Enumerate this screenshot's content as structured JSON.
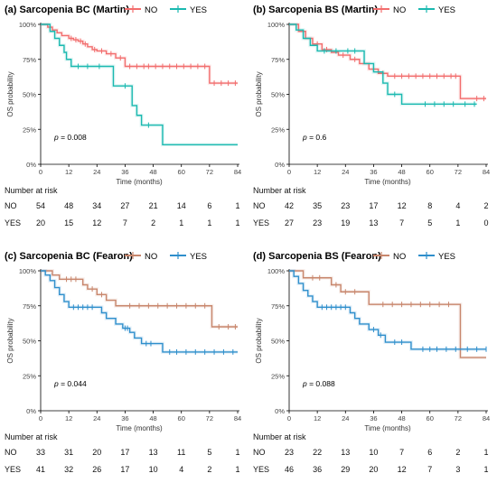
{
  "chart_data": [
    {
      "type": "line",
      "panel_title": "(a) Sarcopenia BC (Martin)",
      "xlabel": "Time (months)",
      "ylabel": "OS probability",
      "xlim": [
        0,
        84
      ],
      "ylim": [
        0,
        1
      ],
      "x_ticks": [
        "0",
        "12",
        "24",
        "36",
        "48",
        "60",
        "72",
        "84"
      ],
      "y_ticks": [
        "0%",
        "25%",
        "50%",
        "75%",
        "100%"
      ],
      "legend": [
        "NO",
        "YES"
      ],
      "pvalue": "0.008",
      "risk_title": "Number at risk",
      "risk_rows": [
        {
          "label": "NO",
          "values": [
            "54",
            "48",
            "34",
            "27",
            "21",
            "14",
            "6",
            "1"
          ]
        },
        {
          "label": "YES",
          "values": [
            "20",
            "15",
            "12",
            "7",
            "2",
            "1",
            "1",
            "1"
          ]
        }
      ],
      "series": [
        {
          "name": "NO",
          "color": "#f26d6d",
          "steps": [
            [
              0,
              1
            ],
            [
              3,
              0.98
            ],
            [
              5,
              0.96
            ],
            [
              7,
              0.94
            ],
            [
              9,
              0.92
            ],
            [
              12,
              0.9
            ],
            [
              14,
              0.89
            ],
            [
              16,
              0.88
            ],
            [
              18,
              0.86
            ],
            [
              20,
              0.84
            ],
            [
              22,
              0.82
            ],
            [
              24,
              0.81
            ],
            [
              28,
              0.79
            ],
            [
              32,
              0.76
            ],
            [
              36,
              0.7
            ],
            [
              72,
              0.58
            ],
            [
              84,
              0.58
            ]
          ],
          "censor": [
            13,
            15,
            17,
            19,
            23,
            26,
            30,
            34,
            38,
            41,
            44,
            46,
            49,
            52,
            55,
            58,
            61,
            64,
            67,
            70,
            74,
            77,
            80,
            83
          ]
        },
        {
          "name": "YES",
          "color": "#1ab9b0",
          "steps": [
            [
              0,
              1
            ],
            [
              4,
              0.95
            ],
            [
              6,
              0.9
            ],
            [
              8,
              0.85
            ],
            [
              10,
              0.8
            ],
            [
              11,
              0.75
            ],
            [
              13,
              0.7
            ],
            [
              31,
              0.56
            ],
            [
              39,
              0.42
            ],
            [
              41,
              0.35
            ],
            [
              43,
              0.28
            ],
            [
              52,
              0.14
            ],
            [
              84,
              0.14
            ]
          ],
          "censor": [
            16,
            20,
            25,
            36,
            46
          ]
        }
      ]
    },
    {
      "type": "line",
      "panel_title": "(b) Sarcopenia BS (Martin)",
      "xlabel": "Time (months)",
      "ylabel": "OS probability",
      "xlim": [
        0,
        84
      ],
      "ylim": [
        0,
        1
      ],
      "x_ticks": [
        "0",
        "12",
        "24",
        "36",
        "48",
        "60",
        "72",
        "84"
      ],
      "y_ticks": [
        "0%",
        "25%",
        "50%",
        "75%",
        "100%"
      ],
      "legend": [
        "NO",
        "YES"
      ],
      "pvalue": "0.6",
      "risk_title": "Number at risk",
      "risk_rows": [
        {
          "label": "NO",
          "values": [
            "42",
            "35",
            "23",
            "17",
            "12",
            "8",
            "4",
            "2"
          ]
        },
        {
          "label": "YES",
          "values": [
            "27",
            "23",
            "19",
            "13",
            "7",
            "5",
            "1",
            "0"
          ]
        }
      ],
      "series": [
        {
          "name": "NO",
          "color": "#f26d6d",
          "steps": [
            [
              0,
              1
            ],
            [
              4,
              0.95
            ],
            [
              7,
              0.9
            ],
            [
              10,
              0.86
            ],
            [
              14,
              0.82
            ],
            [
              18,
              0.8
            ],
            [
              21,
              0.78
            ],
            [
              26,
              0.75
            ],
            [
              30,
              0.72
            ],
            [
              34,
              0.68
            ],
            [
              38,
              0.65
            ],
            [
              42,
              0.63
            ],
            [
              73,
              0.47
            ],
            [
              84,
              0.47
            ]
          ],
          "censor": [
            12,
            16,
            23,
            28,
            36,
            40,
            45,
            48,
            51,
            54,
            57,
            60,
            63,
            66,
            69,
            71,
            80,
            83
          ]
        },
        {
          "name": "YES",
          "color": "#1ab9b0",
          "steps": [
            [
              0,
              1
            ],
            [
              3,
              0.96
            ],
            [
              6,
              0.9
            ],
            [
              9,
              0.85
            ],
            [
              12,
              0.81
            ],
            [
              32,
              0.72
            ],
            [
              36,
              0.66
            ],
            [
              40,
              0.58
            ],
            [
              42,
              0.5
            ],
            [
              48,
              0.43
            ],
            [
              80,
              0.43
            ]
          ],
          "censor": [
            15,
            20,
            25,
            28,
            45,
            58,
            62,
            66,
            70,
            75,
            79
          ]
        }
      ]
    },
    {
      "type": "line",
      "panel_title": "(c) Sarcopenia BC (Fearon)",
      "xlabel": "Time (months)",
      "ylabel": "OS probability",
      "xlim": [
        0,
        84
      ],
      "ylim": [
        0,
        1
      ],
      "x_ticks": [
        "0",
        "12",
        "24",
        "36",
        "48",
        "60",
        "72",
        "84"
      ],
      "y_ticks": [
        "0%",
        "25%",
        "50%",
        "75%",
        "100%"
      ],
      "legend": [
        "NO",
        "YES"
      ],
      "pvalue": "0.044",
      "risk_title": "Number at risk",
      "risk_rows": [
        {
          "label": "NO",
          "values": [
            "33",
            "31",
            "20",
            "17",
            "13",
            "11",
            "5",
            "1"
          ]
        },
        {
          "label": "YES",
          "values": [
            "41",
            "32",
            "26",
            "17",
            "10",
            "4",
            "2",
            "1"
          ]
        }
      ],
      "series": [
        {
          "name": "NO",
          "color": "#c8866c",
          "steps": [
            [
              0,
              1
            ],
            [
              5,
              0.97
            ],
            [
              8,
              0.94
            ],
            [
              18,
              0.9
            ],
            [
              20,
              0.87
            ],
            [
              24,
              0.83
            ],
            [
              28,
              0.79
            ],
            [
              32,
              0.75
            ],
            [
              73,
              0.6
            ],
            [
              84,
              0.6
            ]
          ],
          "censor": [
            11,
            13,
            15,
            22,
            26,
            38,
            42,
            46,
            50,
            54,
            58,
            62,
            66,
            70,
            76,
            80,
            83
          ]
        },
        {
          "name": "YES",
          "color": "#2f8fcc",
          "steps": [
            [
              0,
              1
            ],
            [
              2,
              0.97
            ],
            [
              4,
              0.93
            ],
            [
              6,
              0.88
            ],
            [
              8,
              0.83
            ],
            [
              10,
              0.78
            ],
            [
              12,
              0.74
            ],
            [
              26,
              0.7
            ],
            [
              28,
              0.66
            ],
            [
              32,
              0.62
            ],
            [
              35,
              0.59
            ],
            [
              38,
              0.56
            ],
            [
              40,
              0.52
            ],
            [
              43,
              0.48
            ],
            [
              52,
              0.42
            ],
            [
              84,
              0.42
            ]
          ],
          "censor": [
            14,
            16,
            18,
            20,
            22,
            36,
            37,
            45,
            47,
            55,
            58,
            62,
            66,
            70,
            74,
            78,
            82
          ]
        }
      ]
    },
    {
      "type": "line",
      "panel_title": "(d) Sarcopenia BS (Fearon)",
      "xlabel": "Time (months)",
      "ylabel": "OS probability",
      "xlim": [
        0,
        84
      ],
      "ylim": [
        0,
        1
      ],
      "x_ticks": [
        "0",
        "12",
        "24",
        "36",
        "48",
        "60",
        "72",
        "84"
      ],
      "y_ticks": [
        "0%",
        "25%",
        "50%",
        "75%",
        "100%"
      ],
      "legend": [
        "NO",
        "YES"
      ],
      "pvalue": "0.088",
      "risk_title": "Number at risk",
      "risk_rows": [
        {
          "label": "NO",
          "values": [
            "23",
            "22",
            "13",
            "10",
            "7",
            "6",
            "2",
            "1"
          ]
        },
        {
          "label": "YES",
          "values": [
            "46",
            "36",
            "29",
            "20",
            "12",
            "7",
            "3",
            "1"
          ]
        }
      ],
      "series": [
        {
          "name": "NO",
          "color": "#c8866c",
          "steps": [
            [
              0,
              1
            ],
            [
              6,
              0.95
            ],
            [
              18,
              0.9
            ],
            [
              22,
              0.85
            ],
            [
              34,
              0.76
            ],
            [
              73,
              0.38
            ],
            [
              84,
              0.38
            ]
          ],
          "censor": [
            10,
            13,
            20,
            24,
            28,
            40,
            44,
            48,
            52,
            56,
            60,
            64,
            68
          ]
        },
        {
          "name": "YES",
          "color": "#2f8fcc",
          "steps": [
            [
              0,
              1
            ],
            [
              2,
              0.96
            ],
            [
              4,
              0.91
            ],
            [
              6,
              0.86
            ],
            [
              8,
              0.82
            ],
            [
              10,
              0.78
            ],
            [
              12,
              0.74
            ],
            [
              26,
              0.7
            ],
            [
              28,
              0.66
            ],
            [
              30,
              0.62
            ],
            [
              34,
              0.58
            ],
            [
              38,
              0.54
            ],
            [
              41,
              0.49
            ],
            [
              52,
              0.44
            ],
            [
              84,
              0.44
            ]
          ],
          "censor": [
            14,
            16,
            18,
            20,
            22,
            24,
            36,
            39,
            45,
            48,
            57,
            60,
            63,
            67,
            71,
            76,
            80,
            84
          ]
        }
      ]
    }
  ]
}
